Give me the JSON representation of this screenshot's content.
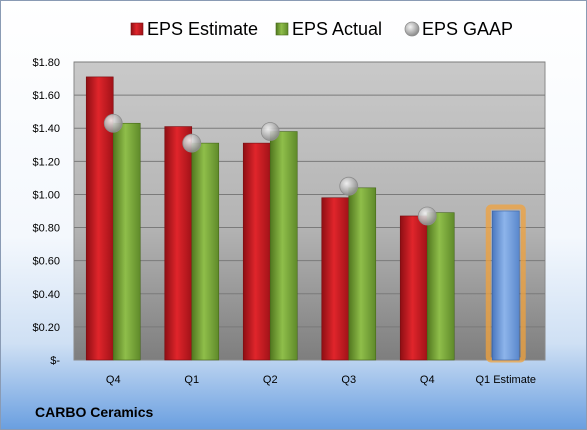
{
  "company_name": "CARBO Ceramics",
  "colors": {
    "estimate": "#c8161d",
    "actual": "#77a33a",
    "gaap": "#b0b0b0",
    "forecast": "#5f8fd6",
    "forecast_glow": "#f0a23c"
  },
  "chart_data": {
    "type": "bar",
    "title": "",
    "xlabel": "",
    "ylabel": "",
    "categories": [
      "Q4",
      "Q1",
      "Q2",
      "Q3",
      "Q4",
      "Q1 Estimate"
    ],
    "ylim": [
      0,
      1.8
    ],
    "y_ticks": [
      0,
      0.2,
      0.4,
      0.6,
      0.8,
      1.0,
      1.2,
      1.4,
      1.6,
      1.8
    ],
    "y_tick_labels": [
      "$-",
      "$0.20",
      "$0.40",
      "$0.60",
      "$0.80",
      "$1.00",
      "$1.20",
      "$1.40",
      "$1.60",
      "$1.80"
    ],
    "grid": true,
    "legend_position": "top",
    "series": [
      {
        "name": "EPS Estimate",
        "type": "bar",
        "values": [
          1.71,
          1.41,
          1.31,
          0.98,
          0.87,
          null
        ]
      },
      {
        "name": "EPS Actual",
        "type": "bar",
        "values": [
          1.43,
          1.31,
          1.38,
          1.04,
          0.89,
          0.9
        ]
      },
      {
        "name": "EPS GAAP",
        "type": "scatter",
        "values": [
          1.43,
          1.31,
          1.38,
          1.05,
          0.87,
          null
        ]
      }
    ]
  }
}
